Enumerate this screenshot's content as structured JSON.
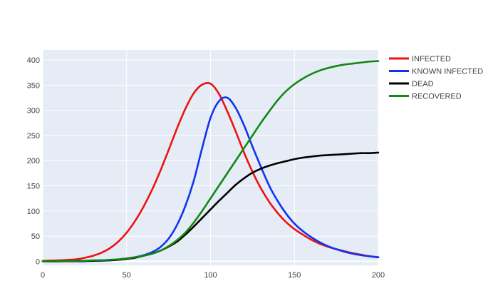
{
  "chart_data": {
    "type": "line",
    "title": "",
    "xlabel": "",
    "ylabel": "",
    "xlim": [
      0,
      200
    ],
    "ylim": [
      -8,
      420
    ],
    "x_ticks": [
      0,
      50,
      100,
      150,
      200
    ],
    "y_ticks": [
      0,
      50,
      100,
      150,
      200,
      250,
      300,
      350,
      400
    ],
    "grid": true,
    "background": "#e5ecf6",
    "legend_position": "right",
    "x": [
      0,
      10,
      20,
      25,
      30,
      35,
      40,
      45,
      50,
      55,
      60,
      65,
      70,
      75,
      80,
      85,
      90,
      95,
      100,
      105,
      110,
      115,
      120,
      125,
      130,
      135,
      140,
      145,
      150,
      155,
      160,
      165,
      170,
      175,
      180,
      185,
      190,
      195,
      200
    ],
    "series": [
      {
        "name": "INFECTED",
        "color": "#ee1111",
        "values": [
          1,
          2,
          4,
          7,
          11,
          17,
          26,
          39,
          57,
          80,
          108,
          141,
          179,
          221,
          264,
          303,
          334,
          351,
          353,
          333,
          298,
          258,
          216,
          178,
          145,
          118,
          96,
          78,
          64,
          53,
          43,
          35,
          29,
          24,
          20,
          16,
          13,
          10,
          8
        ]
      },
      {
        "name": "KNOWN INFECTED",
        "color": "#1133ee",
        "values": [
          0,
          0,
          0,
          0,
          1,
          1,
          2,
          3,
          5,
          8,
          12,
          18,
          28,
          45,
          72,
          110,
          160,
          225,
          285,
          318,
          325,
          305,
          270,
          228,
          188,
          150,
          120,
          95,
          75,
          60,
          48,
          38,
          30,
          24,
          19,
          15,
          12,
          10,
          8
        ]
      },
      {
        "name": "DEAD",
        "color": "#000000",
        "values": [
          0,
          0,
          1,
          1,
          1,
          2,
          2,
          3,
          5,
          7,
          11,
          15,
          21,
          29,
          39,
          53,
          69,
          86,
          103,
          120,
          136,
          152,
          165,
          176,
          184,
          190,
          195,
          199,
          203,
          206,
          208,
          210,
          211,
          212,
          213,
          214,
          215,
          215,
          216
        ]
      },
      {
        "name": "RECOVERED",
        "color": "#118811",
        "values": [
          0,
          0,
          1,
          1,
          2,
          2,
          3,
          4,
          6,
          8,
          11,
          15,
          21,
          30,
          42,
          57,
          77,
          100,
          125,
          150,
          175,
          200,
          225,
          250,
          275,
          298,
          320,
          338,
          352,
          363,
          372,
          379,
          384,
          388,
          391,
          393,
          395,
          397,
          398
        ]
      }
    ]
  }
}
